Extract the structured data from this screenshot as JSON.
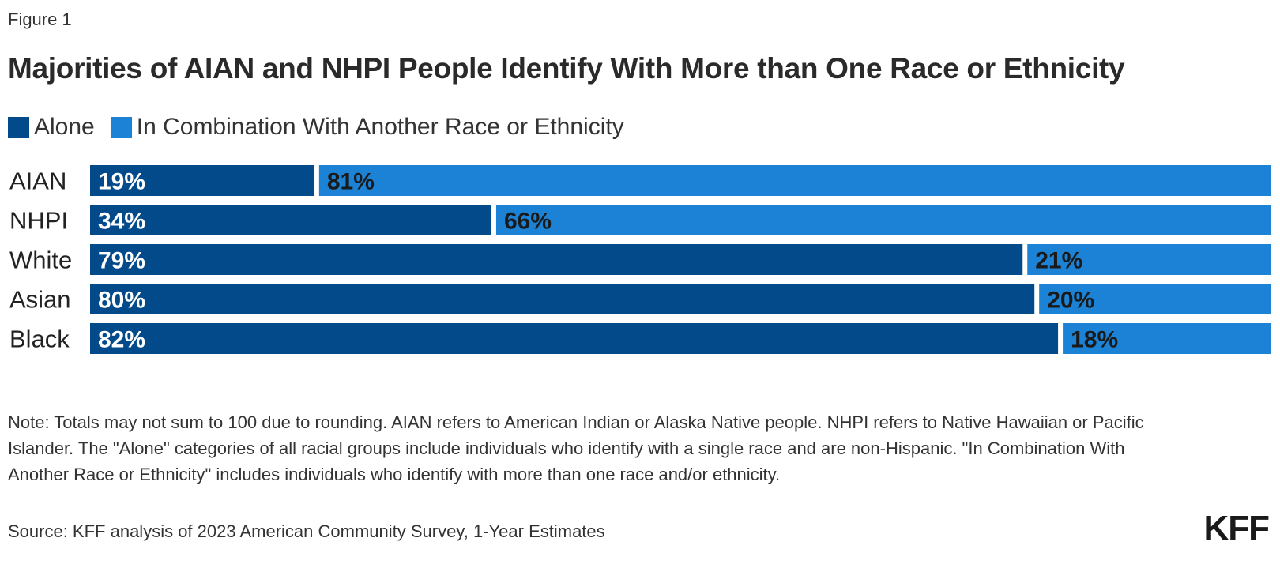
{
  "figure_label": "Figure 1",
  "colors": {
    "alone": "#034a8a",
    "combination": "#1c82d6",
    "alone_label": "#ffffff",
    "combination_label": "#1a1a1a"
  },
  "note": "Note: Totals may not sum to 100 due to rounding. AIAN refers to American Indian or Alaska Native people. NHPI refers to Native Hawaiian or Pacific Islander. The \"Alone\" categories of all racial groups include individuals who identify with a single race and are non-Hispanic. \"In Combination With Another Race or Ethnicity\" includes individuals who identify with more than one race and/or ethnicity.",
  "source": "Source: KFF analysis of 2023 American Community Survey, 1-Year Estimates",
  "logo_text": "KFF",
  "chart_data": {
    "type": "bar",
    "orientation": "horizontal",
    "stacked": true,
    "title": "Majorities of AIAN and NHPI People Identify With More than One Race or Ethnicity",
    "categories": [
      "AIAN",
      "NHPI",
      "White",
      "Asian",
      "Black"
    ],
    "series": [
      {
        "name": "Alone",
        "values": [
          19,
          34,
          79,
          80,
          82
        ],
        "labels": [
          "19%",
          "34%",
          "79%",
          "80%",
          "82%"
        ]
      },
      {
        "name": "In Combination With Another Race or Ethnicity",
        "values": [
          81,
          66,
          21,
          20,
          18
        ],
        "labels": [
          "81%",
          "66%",
          "21%",
          "20%",
          "18%"
        ]
      }
    ],
    "xlim": [
      0,
      100
    ],
    "xlabel": "",
    "ylabel": "",
    "grid": false,
    "legend_position": "top-left"
  }
}
